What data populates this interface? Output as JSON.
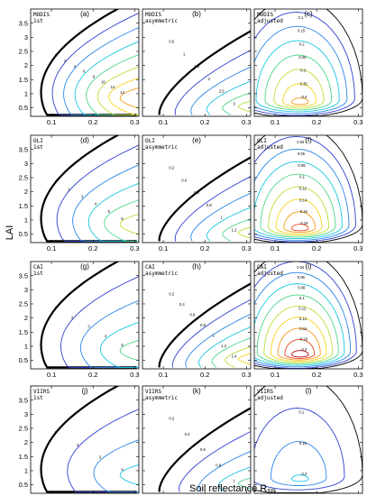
{
  "figure": {
    "xlabel": "Soil reflectance R",
    "xlabel_sub": "SR",
    "ylabel": "LAI"
  },
  "chart_data": {
    "type": "contour",
    "xlim": [
      0.05,
      0.31
    ],
    "ylim": [
      0.2,
      4.0
    ],
    "xticks": [
      "0.1",
      "0.2",
      "0.3"
    ],
    "yticks": [
      "0.5",
      "1",
      "1.5",
      "2",
      "2.5",
      "3",
      "3.5"
    ],
    "rows": [
      {
        "sensor": "MODIS",
        "panels": [
          {
            "letter": "(a)",
            "line1": "MODIS",
            "line2": "1st",
            "kind": "first",
            "levels": [
              "1",
              "2",
              "4",
              "6",
              "8",
              "10",
              "12",
              "14"
            ]
          },
          {
            "letter": "(b)",
            "line1": "MODIS",
            "line2": "asymmetric",
            "kind": "asym",
            "levels": [
              "0.5",
              "1",
              "1.5",
              "2",
              "2.5",
              "3"
            ]
          },
          {
            "letter": "(c)",
            "line1": "MODIS",
            "line2": "adjusted",
            "kind": "adj",
            "levels": [
              "0.05",
              "0.1",
              "0.15",
              "0.2",
              "0.25",
              "0.3",
              "0.35",
              "0.4"
            ]
          }
        ]
      },
      {
        "sensor": "OLI",
        "panels": [
          {
            "letter": "(d)",
            "line1": "OLI",
            "line2": "1st",
            "kind": "first",
            "levels": [
              "1",
              "2",
              "3",
              "4",
              "5",
              "6"
            ]
          },
          {
            "letter": "(e)",
            "line1": "OLI",
            "line2": "asymmetric",
            "kind": "asym",
            "levels": [
              "0.2",
              "0.4",
              "0.6",
              "0.8",
              "1",
              "1.2"
            ]
          },
          {
            "letter": "(f)",
            "line1": "OLI",
            "line2": "adjusted",
            "kind": "adj",
            "levels": [
              "0.02",
              "0.04",
              "0.06",
              "0.08",
              "0.1",
              "0.12",
              "0.14",
              "0.16",
              "0.18"
            ]
          }
        ]
      },
      {
        "sensor": "CAI",
        "panels": [
          {
            "letter": "(g)",
            "line1": "CAI",
            "line2": "1st",
            "kind": "first",
            "levels": [
              "1",
              "2",
              "3",
              "4",
              "5"
            ]
          },
          {
            "letter": "(h)",
            "line1": "CAI",
            "line2": "asymmetric",
            "kind": "asym",
            "levels": [
              "0.2",
              "0.4",
              "0.6",
              "0.8",
              "1",
              "1.2",
              "1.4"
            ]
          },
          {
            "letter": "(i)",
            "line1": "CAI",
            "line2": "adjusted",
            "kind": "adj",
            "levels": [
              "0.02",
              "0.04",
              "0.06",
              "0.08",
              "0.1",
              "0.12",
              "0.14",
              "0.16",
              "0.18",
              "0.2"
            ]
          }
        ]
      },
      {
        "sensor": "VIIRS",
        "panels": [
          {
            "letter": "(j)",
            "line1": "VIIRS",
            "line2": "1st",
            "kind": "first",
            "levels": [
              "1",
              "2",
              "3",
              "4"
            ]
          },
          {
            "letter": "(k)",
            "line1": "VIIRS",
            "line2": "asymmetric",
            "kind": "asym",
            "levels": [
              "0.2",
              "0.4",
              "0.6",
              "0.8",
              "1"
            ]
          },
          {
            "letter": "(l)",
            "line1": "VIIRS",
            "line2": "adjusted",
            "kind": "adj",
            "levels": [
              "0.05",
              "0.1",
              "0.15",
              "0.2"
            ]
          }
        ]
      }
    ]
  }
}
